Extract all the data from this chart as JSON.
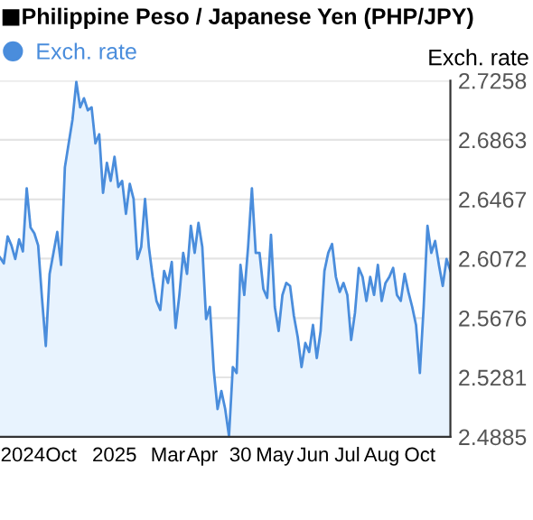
{
  "chart_data": {
    "type": "area",
    "title": "Philippine Peso / Japanese Yen (PHP/JPY)",
    "ylabel": "Exch. rate",
    "categories": [
      null,
      null,
      null,
      null,
      null,
      null,
      "2024",
      null,
      null,
      null,
      null,
      null,
      null,
      null,
      null,
      null,
      "Oct",
      null,
      null,
      null,
      null,
      null,
      null,
      null,
      null,
      null,
      null,
      null,
      null,
      null,
      "2025",
      null,
      null,
      null,
      null,
      null,
      null,
      null,
      null,
      null,
      null,
      null,
      null,
      null,
      "Mar",
      null,
      null,
      null,
      null,
      null,
      null,
      null,
      null,
      "Apr",
      null,
      null,
      null,
      null,
      null,
      null,
      null,
      null,
      null,
      "30",
      null,
      null,
      null,
      null,
      null,
      null,
      null,
      null,
      "May",
      null,
      null,
      null,
      null,
      null,
      null,
      null,
      null,
      null,
      "Jun",
      null,
      null,
      null,
      null,
      null,
      null,
      null,
      null,
      "Jul",
      null,
      null,
      null,
      null,
      null,
      null,
      null,
      null,
      "Aug",
      null,
      null,
      null,
      null,
      null,
      null,
      null,
      null,
      null,
      "Oct",
      null,
      null,
      null,
      null,
      null,
      null,
      null,
      null
    ],
    "ylim": [
      2.4885,
      2.7258
    ],
    "yticks": [
      2.4885,
      2.5281,
      2.5676,
      2.6072,
      2.6467,
      2.6863,
      2.7258
    ],
    "grid": "y",
    "legend": "top left",
    "marker": "none",
    "line_style": "solid",
    "series": [
      {
        "name": "Exch. rate",
        "color": "#4a8ddc",
        "values": [
          2.608,
          2.604,
          2.622,
          2.616,
          2.607,
          2.62,
          2.612,
          2.654,
          2.628,
          2.624,
          2.616,
          2.581,
          2.549,
          2.597,
          2.611,
          2.625,
          2.603,
          2.668,
          2.684,
          2.7,
          2.725,
          2.708,
          2.714,
          2.706,
          2.708,
          2.684,
          2.69,
          2.651,
          2.671,
          2.659,
          2.675,
          2.655,
          2.659,
          2.637,
          2.657,
          2.647,
          2.607,
          2.615,
          2.647,
          2.615,
          2.595,
          2.579,
          2.573,
          2.599,
          2.591,
          2.605,
          2.561,
          2.583,
          2.611,
          2.597,
          2.629,
          2.611,
          2.631,
          2.615,
          2.567,
          2.575,
          2.533,
          2.507,
          2.519,
          2.507,
          2.489,
          2.535,
          2.531,
          2.603,
          2.583,
          2.615,
          2.654,
          2.611,
          2.611,
          2.587,
          2.581,
          2.623,
          2.575,
          2.559,
          2.583,
          2.591,
          2.589,
          2.569,
          2.555,
          2.535,
          2.551,
          2.545,
          2.563,
          2.541,
          2.559,
          2.599,
          2.611,
          2.617,
          2.595,
          2.585,
          2.591,
          2.583,
          2.553,
          2.571,
          2.601,
          2.595,
          2.579,
          2.595,
          2.583,
          2.603,
          2.579,
          2.591,
          2.595,
          2.601,
          2.583,
          2.579,
          2.597,
          2.585,
          2.575,
          2.563,
          2.531,
          2.575,
          2.629,
          2.611,
          2.619,
          2.603,
          2.589,
          2.607,
          2.599
        ]
      }
    ]
  }
}
